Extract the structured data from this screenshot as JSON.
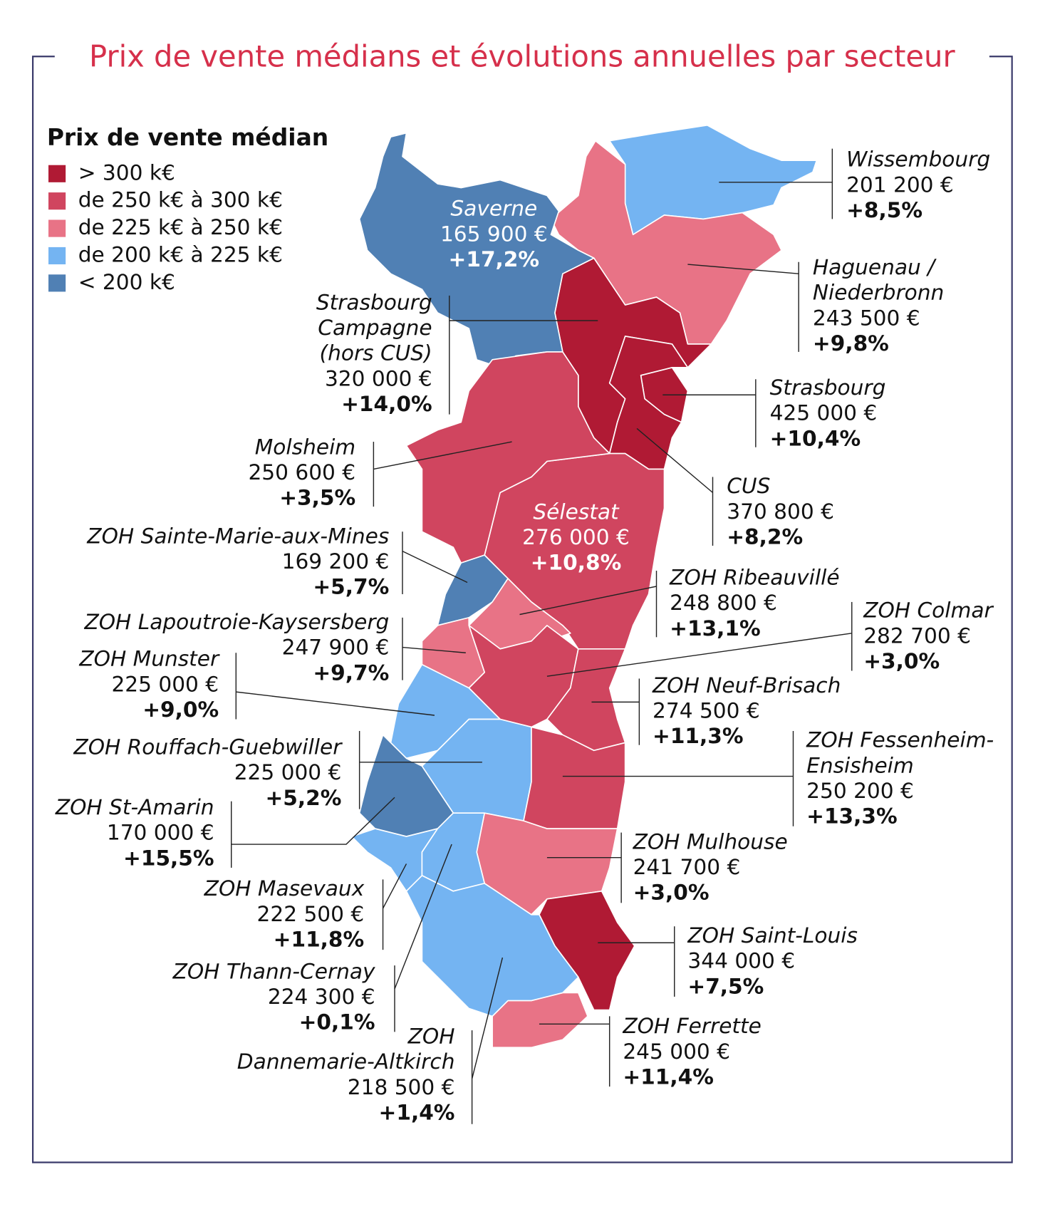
{
  "title": "Prix de vente médians et évolutions annuelles par secteur",
  "legend": {
    "title": "Prix de vente médian",
    "items": [
      {
        "label": "> 300 k€",
        "color": "#b01a34"
      },
      {
        "label": "de 250 k€ à 300 k€",
        "color": "#d0455f"
      },
      {
        "label": "de 225 k€ à 250 k€",
        "color": "#e87386"
      },
      {
        "label": "de 200 k€ à 225 k€",
        "color": "#74b4f2"
      },
      {
        "label": "< 200 k€",
        "color": "#5080b4"
      }
    ]
  },
  "sectors": [
    {
      "name_lines": [
        "Wissembourg"
      ],
      "price": "201 200 €",
      "change": "+8,5%",
      "color": "#74b4f2"
    },
    {
      "name_lines": [
        "Haguenau /",
        "Niederbronn"
      ],
      "price": "243 500 €",
      "change": "+9,8%",
      "color": "#e87386"
    },
    {
      "name_lines": [
        "Strasbourg",
        "Campagne",
        "(hors CUS)"
      ],
      "price": "320 000 €",
      "change": "+14,0%",
      "color": "#b01a34"
    },
    {
      "name_lines": [
        "Strasbourg"
      ],
      "price": "425 000 €",
      "change": "+10,4%",
      "color": "#b01a34"
    },
    {
      "name_lines": [
        "CUS"
      ],
      "price": "370 800 €",
      "change": "+8,2%",
      "color": "#b01a34"
    },
    {
      "name_lines": [
        "Saverne"
      ],
      "price": "165 900 €",
      "change": "+17,2%",
      "color": "#5080b4"
    },
    {
      "name_lines": [
        "Sélestat"
      ],
      "price": "276 000 €",
      "change": "+10,8%",
      "color": "#d0455f"
    },
    {
      "name_lines": [
        "Molsheim"
      ],
      "price": "250 600 €",
      "change": "+3,5%",
      "color": "#d0455f"
    },
    {
      "name_lines": [
        "ZOH Sainte-Marie-aux-Mines"
      ],
      "price": "169 200 €",
      "change": "+5,7%",
      "color": "#5080b4"
    },
    {
      "name_lines": [
        "ZOH Ribeauvillé"
      ],
      "price": "248 800 €",
      "change": "+13,1%",
      "color": "#e87386"
    },
    {
      "name_lines": [
        "ZOH Colmar"
      ],
      "price": "282 700 €",
      "change": "+3,0%",
      "color": "#d0455f"
    },
    {
      "name_lines": [
        "ZOH Lapoutroie-Kaysersberg"
      ],
      "price": "247 900 €",
      "change": "+9,7%",
      "color": "#e87386"
    },
    {
      "name_lines": [
        "ZOH Munster"
      ],
      "price": "225 000 €",
      "change": "+9,0%",
      "color": "#74b4f2"
    },
    {
      "name_lines": [
        "ZOH Neuf-Brisach"
      ],
      "price": "274 500 €",
      "change": "+11,3%",
      "color": "#d0455f"
    },
    {
      "name_lines": [
        "ZOH Rouffach-Guebwiller"
      ],
      "price": "225 000 €",
      "change": "+5,2%",
      "color": "#74b4f2"
    },
    {
      "name_lines": [
        "ZOH Fessenheim-",
        "Ensisheim"
      ],
      "price": "250 200 €",
      "change": "+13,3%",
      "color": "#d0455f"
    },
    {
      "name_lines": [
        "ZOH St-Amarin"
      ],
      "price": "170 000 €",
      "change": "+15,5%",
      "color": "#5080b4"
    },
    {
      "name_lines": [
        "ZOH Mulhouse"
      ],
      "price": "241 700 €",
      "change": "+3,0%",
      "color": "#e87386"
    },
    {
      "name_lines": [
        "ZOH Masevaux"
      ],
      "price": "222 500 €",
      "change": "+11,8%",
      "color": "#74b4f2"
    },
    {
      "name_lines": [
        "ZOH Saint-Louis"
      ],
      "price": "344 000 €",
      "change": "+7,5%",
      "color": "#b01a34"
    },
    {
      "name_lines": [
        "ZOH Thann-Cernay"
      ],
      "price": "224 300 €",
      "change": "+0,1%",
      "color": "#74b4f2"
    },
    {
      "name_lines": [
        "ZOH Ferrette"
      ],
      "price": "245 000 €",
      "change": "+11,4%",
      "color": "#e87386"
    },
    {
      "name_lines": [
        "ZOH",
        "Dannemarie-Altkirch"
      ],
      "price": "218 500 €",
      "change": "+1,4%",
      "color": "#74b4f2"
    }
  ]
}
